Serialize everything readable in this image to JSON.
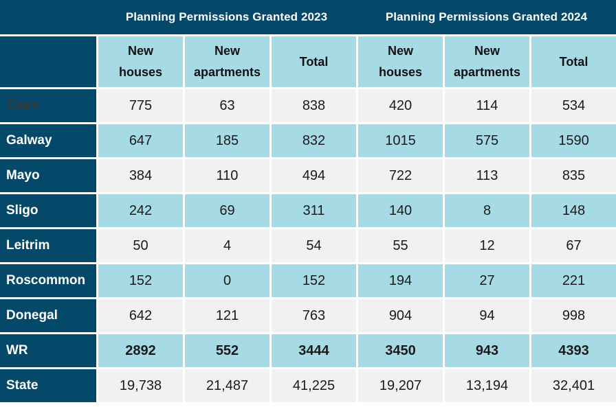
{
  "colors": {
    "dark_teal": "#05496A",
    "light_blue": "#A6DBE6",
    "light_gray": "#F1F1F1",
    "grid_line": "#FFFFFF",
    "header_text": "#FFFFFF",
    "data_text": "#1A1A1A",
    "muted_row_label": "#3B3838"
  },
  "header": {
    "group_2023": "Planning Permissions Granted 2023",
    "group_2024": "Planning Permissions Granted 2024",
    "columns_2023": [
      [
        "New",
        "houses"
      ],
      [
        "New",
        "apartments"
      ],
      [
        "Total"
      ]
    ],
    "columns_2024": [
      [
        "New",
        "houses"
      ],
      [
        "New",
        "apartments"
      ],
      [
        "Total"
      ]
    ]
  },
  "rows": [
    {
      "label": "Clare",
      "values": [
        "775",
        "63",
        "838",
        "420",
        "114",
        "534"
      ]
    },
    {
      "label": "Galway",
      "values": [
        "647",
        "185",
        "832",
        "1015",
        "575",
        "1590"
      ]
    },
    {
      "label": "Mayo",
      "values": [
        "384",
        "110",
        "494",
        "722",
        "113",
        "835"
      ]
    },
    {
      "label": "Sligo",
      "values": [
        "242",
        "69",
        "311",
        "140",
        "8",
        "148"
      ]
    },
    {
      "label": "Leitrim",
      "values": [
        "50",
        "4",
        "54",
        "55",
        "12",
        "67"
      ]
    },
    {
      "label": "Roscommon",
      "values": [
        "152",
        "0",
        "152",
        "194",
        "27",
        "221"
      ]
    },
    {
      "label": "Donegal",
      "values": [
        "642",
        "121",
        "763",
        "904",
        "94",
        "998"
      ]
    },
    {
      "label": "WR",
      "values": [
        "2892",
        "552",
        "3444",
        "3450",
        "943",
        "4393"
      ]
    },
    {
      "label": "State",
      "values": [
        "19,738",
        "21,487",
        "41,225",
        "19,207",
        "13,194",
        "32,401"
      ]
    }
  ],
  "chart_data": {
    "type": "table",
    "title": "Planning Permissions Granted 2023 and 2024",
    "column_groups": [
      "Planning Permissions Granted 2023",
      "Planning Permissions Granted 2024"
    ],
    "columns": [
      "New houses 2023",
      "New apartments 2023",
      "Total 2023",
      "New houses 2024",
      "New apartments 2024",
      "Total 2024"
    ],
    "row_labels": [
      "Clare",
      "Galway",
      "Mayo",
      "Sligo",
      "Leitrim",
      "Roscommon",
      "Donegal",
      "WR",
      "State"
    ],
    "rows": [
      [
        775,
        63,
        838,
        420,
        114,
        534
      ],
      [
        647,
        185,
        832,
        1015,
        575,
        1590
      ],
      [
        384,
        110,
        494,
        722,
        113,
        835
      ],
      [
        242,
        69,
        311,
        140,
        8,
        148
      ],
      [
        50,
        4,
        54,
        55,
        12,
        67
      ],
      [
        152,
        0,
        152,
        194,
        27,
        221
      ],
      [
        642,
        121,
        763,
        904,
        94,
        998
      ],
      [
        2892,
        552,
        3444,
        3450,
        943,
        4393
      ],
      [
        19738,
        21487,
        41225,
        19207,
        13194,
        32401
      ]
    ],
    "emphasized_row": "WR"
  }
}
